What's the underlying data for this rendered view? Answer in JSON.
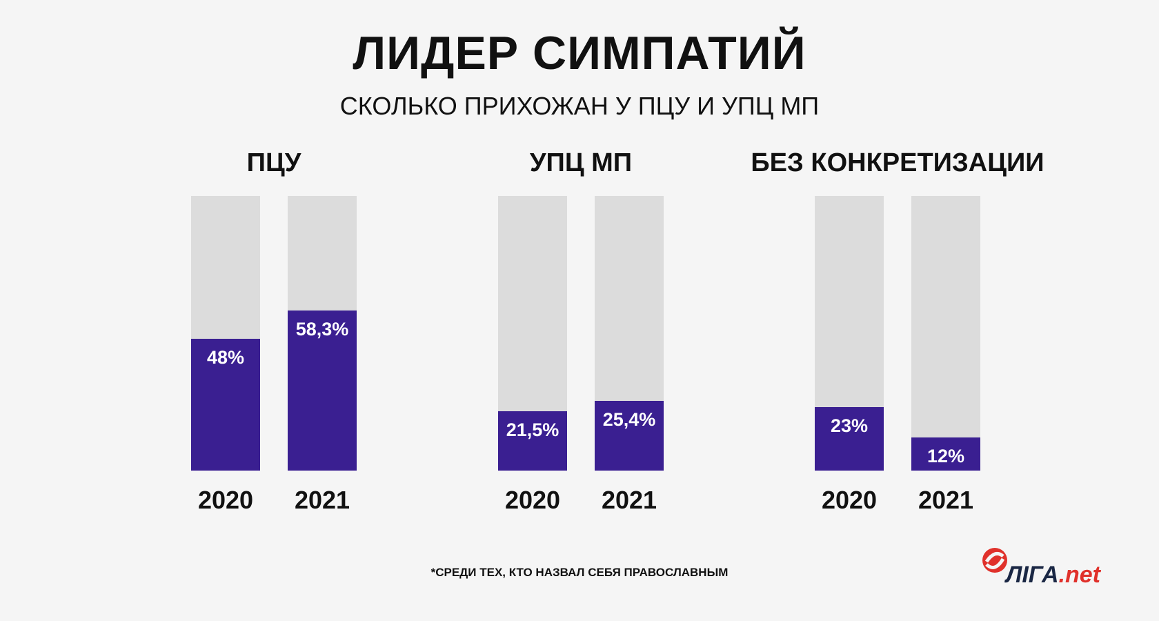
{
  "title": "ЛИДЕР СИМПАТИЙ",
  "subtitle": "СКОЛЬКО ПРИХОЖАН У ПЦУ И УПЦ МП",
  "footnote": "*СРЕДИ ТЕХ, КТО НАЗВАЛ СЕБЯ ПРАВОСЛАВНЫМ",
  "logo": {
    "main": "ЛIГА",
    "suffix": ".net"
  },
  "colors": {
    "fill": "#3a1f91",
    "track": "#dcdcdc",
    "background": "#f5f5f5",
    "logo_red": "#e0312b",
    "logo_dark": "#1a2744"
  },
  "chart_data": {
    "type": "bar",
    "title": "ЛИДЕР СИМПАТИЙ",
    "subtitle": "СКОЛЬКО ПРИХОЖАН У ПЦУ И УПЦ МП",
    "ylim": [
      0,
      100
    ],
    "unit": "%",
    "groups": [
      {
        "name": "ПЦУ",
        "bars": [
          {
            "year": "2020",
            "value": 48,
            "label": "48%"
          },
          {
            "year": "2021",
            "value": 58.3,
            "label": "58,3%"
          }
        ]
      },
      {
        "name": "УПЦ МП",
        "bars": [
          {
            "year": "2020",
            "value": 21.5,
            "label": "21,5%"
          },
          {
            "year": "2021",
            "value": 25.4,
            "label": "25,4%"
          }
        ]
      },
      {
        "name": "БЕЗ КОНКРЕТИЗАЦИИ",
        "bars": [
          {
            "year": "2020",
            "value": 23,
            "label": "23%"
          },
          {
            "year": "2021",
            "value": 12,
            "label": "12%"
          }
        ]
      }
    ]
  }
}
